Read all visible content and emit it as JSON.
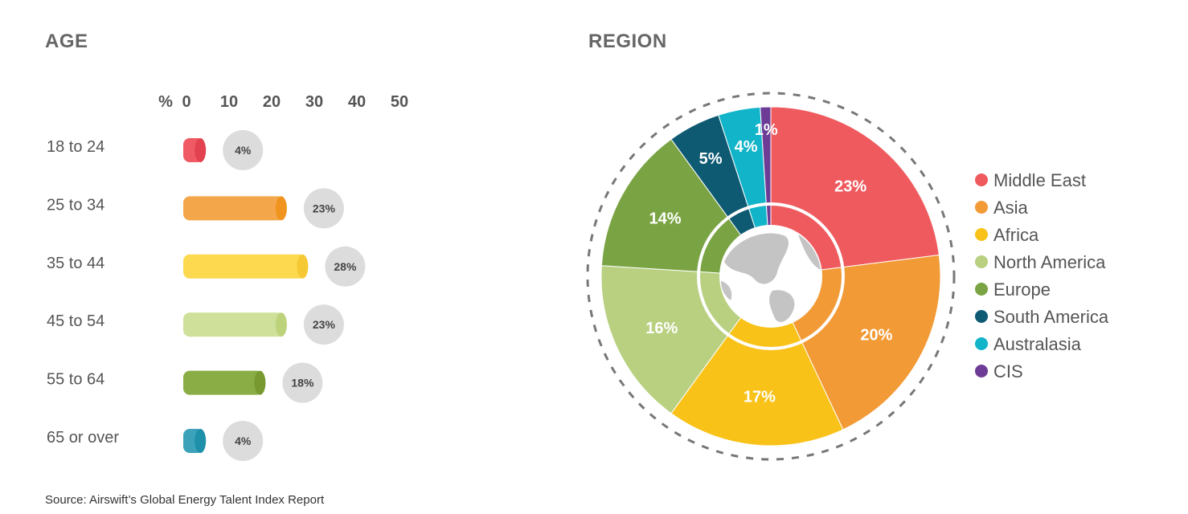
{
  "source": "Source: Airswift’s Global Energy Talent Index Report",
  "chart_data": [
    {
      "type": "bar",
      "title": "AGE",
      "axis_unit": "%",
      "xlim": [
        0,
        50
      ],
      "ticks": [
        0,
        10,
        20,
        30,
        40,
        50
      ],
      "categories": [
        "18 to 24",
        "25 to 34",
        "35 to 44",
        "45 to 54",
        "55 to 64",
        "65 or over"
      ],
      "values": [
        4,
        23,
        28,
        23,
        18,
        4
      ],
      "value_labels": [
        "4%",
        "23%",
        "28%",
        "23%",
        "18%",
        "4%"
      ],
      "colors": [
        "#ef5a64",
        "#f4a64a",
        "#fcd94e",
        "#cfe09a",
        "#8aad45",
        "#3ba2b9"
      ],
      "end_colors": [
        "#e24250",
        "#f0941f",
        "#f6c934",
        "#bcd27b",
        "#77992f",
        "#1f90a9"
      ]
    },
    {
      "type": "pie",
      "title": "REGION",
      "legend_position": "right",
      "labels": [
        "Middle East",
        "Asia",
        "Africa",
        "North America",
        "Europe",
        "South America",
        "Australasia",
        "CIS"
      ],
      "values": [
        23,
        20,
        17,
        16,
        14,
        5,
        4,
        1
      ],
      "value_labels": [
        "23%",
        "20%",
        "17%",
        "16%",
        "14%",
        "5%",
        "4%",
        "1%"
      ],
      "colors": [
        "#ef5a5e",
        "#f29a36",
        "#f8c218",
        "#b8d080",
        "#7aa444",
        "#0e5a73",
        "#11b4c8",
        "#6c3c96"
      ]
    }
  ]
}
